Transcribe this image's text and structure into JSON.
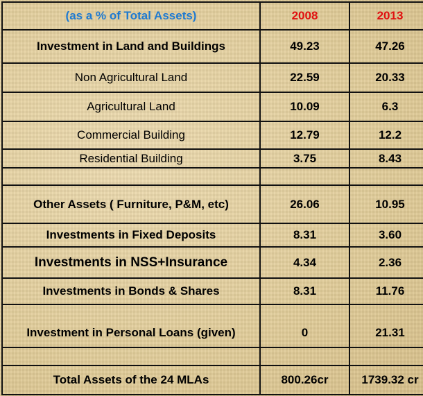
{
  "header": {
    "label": "(as a % of Total Assets)",
    "year1": "2008",
    "year2": "2013"
  },
  "rows": [
    {
      "label": "Investment in Land and Buildings",
      "v2008": "49.23",
      "v2013": "47.26"
    },
    {
      "label": "Non Agricultural Land",
      "v2008": "22.59",
      "v2013": "20.33"
    },
    {
      "label": "Agricultural Land",
      "v2008": "10.09",
      "v2013": "6.3"
    },
    {
      "label": "Commercial Building",
      "v2008": "12.79",
      "v2013": "12.2"
    },
    {
      "label": "Residential Building",
      "v2008": "3.75",
      "v2013": "8.43"
    },
    {
      "label": "",
      "v2008": "",
      "v2013": ""
    },
    {
      "label": "Other Assets ( Furniture, P&M,  etc)",
      "v2008": "26.06",
      "v2013": "10.95"
    },
    {
      "label": "Investments in Fixed Deposits",
      "v2008": "8.31",
      "v2013": "3.60"
    },
    {
      "label": "Investments in NSS+Insurance",
      "v2008": "4.34",
      "v2013": "2.36"
    },
    {
      "label": "Investments in Bonds & Shares",
      "v2008": "8.31",
      "v2013": "11.76"
    },
    {
      "label": "Investment in Personal Loans (given)",
      "v2008": "0",
      "v2013": "21.31"
    },
    {
      "label": "",
      "v2008": "",
      "v2013": ""
    },
    {
      "label": "Total Assets of the 24 MLAs",
      "v2008": "800.26cr",
      "v2013": "1739.32 cr"
    }
  ]
}
